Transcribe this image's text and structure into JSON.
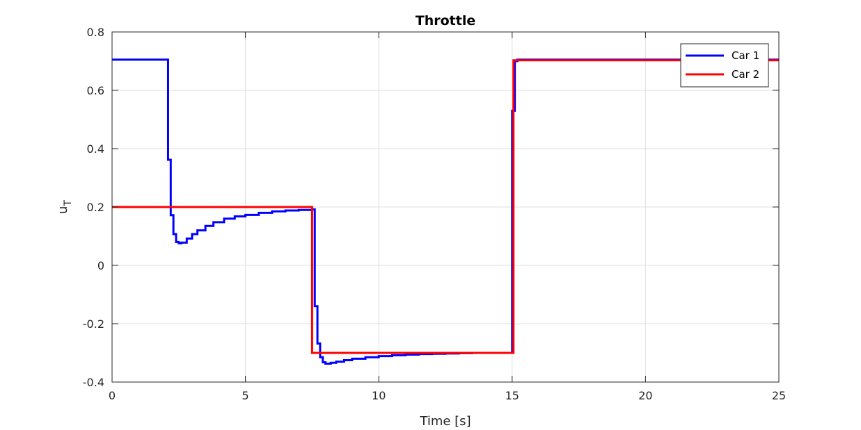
{
  "chart_data": {
    "type": "line",
    "title": "Throttle",
    "xlabel": "Time [s]",
    "ylabel_main": "u",
    "ylabel_sub": "T",
    "xlim": [
      0,
      25
    ],
    "ylim": [
      -0.4,
      0.8
    ],
    "xticks": [
      0,
      5,
      10,
      15,
      20,
      25
    ],
    "xtick_labels": [
      "0",
      "5",
      "10",
      "15",
      "20",
      "25"
    ],
    "yticks": [
      -0.4,
      -0.2,
      0,
      0.2,
      0.4,
      0.6,
      0.8
    ],
    "ytick_labels": [
      "-0.4",
      "-0.2",
      "0",
      "0.2",
      "0.4",
      "0.6",
      "0.8"
    ],
    "grid": true,
    "legend_position": "top-right",
    "series": [
      {
        "name": "Car 1",
        "color": "#0000ff",
        "step": true,
        "x": [
          0,
          2.1,
          2.2,
          2.3,
          2.4,
          2.5,
          2.6,
          2.8,
          3.0,
          3.2,
          3.5,
          3.8,
          4.2,
          4.6,
          5.0,
          5.5,
          6.0,
          6.5,
          7.0,
          7.5,
          7.6,
          7.7,
          7.8,
          7.9,
          8.0,
          8.2,
          8.4,
          8.7,
          9.0,
          9.5,
          10.0,
          10.5,
          11.0,
          11.5,
          12.0,
          12.5,
          13.0,
          13.5,
          15.0,
          15.1,
          15.2,
          25
        ],
        "y": [
          0.705,
          0.362,
          0.172,
          0.107,
          0.08,
          0.076,
          0.078,
          0.092,
          0.107,
          0.12,
          0.135,
          0.148,
          0.16,
          0.168,
          0.173,
          0.18,
          0.185,
          0.188,
          0.19,
          0.192,
          -0.14,
          -0.268,
          -0.315,
          -0.332,
          -0.337,
          -0.334,
          -0.33,
          -0.325,
          -0.32,
          -0.315,
          -0.311,
          -0.308,
          -0.306,
          -0.304,
          -0.303,
          -0.302,
          -0.301,
          -0.3,
          0.53,
          0.7,
          0.705,
          0.705
        ]
      },
      {
        "name": "Car 2",
        "color": "#ff0000",
        "step": true,
        "x": [
          0,
          7.5,
          15.05,
          25
        ],
        "y": [
          0.2,
          -0.3,
          0.703,
          0.703
        ]
      }
    ]
  }
}
